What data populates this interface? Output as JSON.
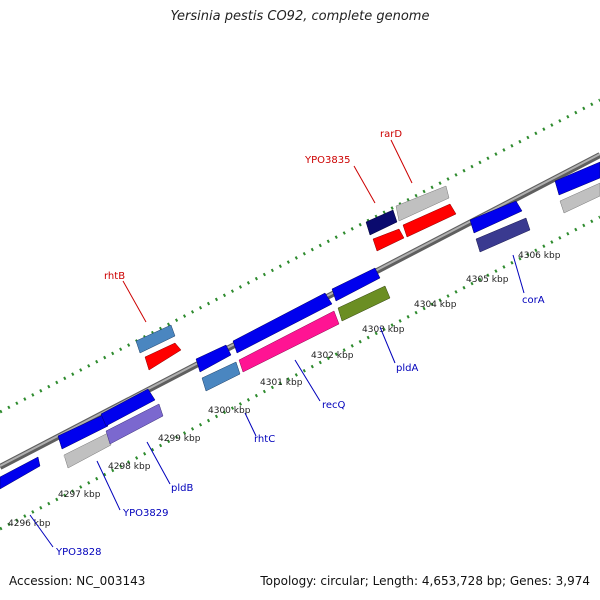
{
  "title": "Yersinia pestis CO92, complete genome",
  "footer": {
    "accession": "Accession: NC_003143",
    "summary": "Topology: circular; Length: 4,653,728 bp; Genes: 3,974"
  },
  "colors": {
    "backbone": "#8c8c8c",
    "tick_dots": "#2e8b2e",
    "label_red": "#cc0000",
    "label_blue": "#0000bb",
    "scale_text": "#222222"
  },
  "scale_labels": [
    "4296 kbp",
    "4297 kbp",
    "4298 kbp",
    "4299 kbp",
    "4300 kbp",
    "4301 kbp",
    "4302 kbp",
    "4303 kbp",
    "4304 kbp",
    "4305 kbp",
    "4306 kbp"
  ],
  "gene_labels": [
    {
      "text": "rhtB",
      "strand": "forward"
    },
    {
      "text": "YPO3835",
      "strand": "forward"
    },
    {
      "text": "rarD",
      "strand": "forward"
    },
    {
      "text": "YPO3828",
      "strand": "reverse"
    },
    {
      "text": "YPO3829",
      "strand": "reverse"
    },
    {
      "text": "pldB",
      "strand": "reverse"
    },
    {
      "text": "rhtC",
      "strand": "reverse"
    },
    {
      "text": "recQ",
      "strand": "reverse"
    },
    {
      "text": "pldA",
      "strand": "reverse"
    },
    {
      "text": "corA",
      "strand": "reverse"
    }
  ],
  "features": [
    {
      "name": "gene-blue-1",
      "color": "#0000ee"
    },
    {
      "name": "gene-blue-2",
      "color": "#0000ee"
    },
    {
      "name": "gene-blue-3",
      "color": "#0000ee"
    },
    {
      "name": "gene-blue-4",
      "color": "#0000ee"
    },
    {
      "name": "gene-blue-5",
      "color": "#0000ee"
    },
    {
      "name": "gene-blue-6",
      "color": "#0000ee"
    },
    {
      "name": "gene-blue-7",
      "color": "#0000ee"
    },
    {
      "name": "gene-blue-8",
      "color": "#0000ee"
    },
    {
      "name": "gene-grey-1",
      "color": "#c0c0c0"
    },
    {
      "name": "gene-grey-2",
      "color": "#c0c0c0"
    },
    {
      "name": "gene-grey-3",
      "color": "#c0c0c0"
    },
    {
      "name": "gene-pldB",
      "color": "#7b68cf"
    },
    {
      "name": "gene-rhtC",
      "color": "#4a86c0"
    },
    {
      "name": "gene-recQ",
      "color": "#ff1493"
    },
    {
      "name": "gene-pldA",
      "color": "#6b8e23"
    },
    {
      "name": "gene-rhtB",
      "color": "#4a86c0"
    },
    {
      "name": "gene-red-1",
      "color": "#ff0000"
    },
    {
      "name": "gene-YPO3835",
      "color": "#0a0a6e"
    },
    {
      "name": "gene-red-2",
      "color": "#ff0000"
    },
    {
      "name": "gene-red-3",
      "color": "#ff0000"
    },
    {
      "name": "gene-rarD",
      "color": "#c0c0c0"
    },
    {
      "name": "gene-corA",
      "color": "#3a3a90"
    }
  ]
}
